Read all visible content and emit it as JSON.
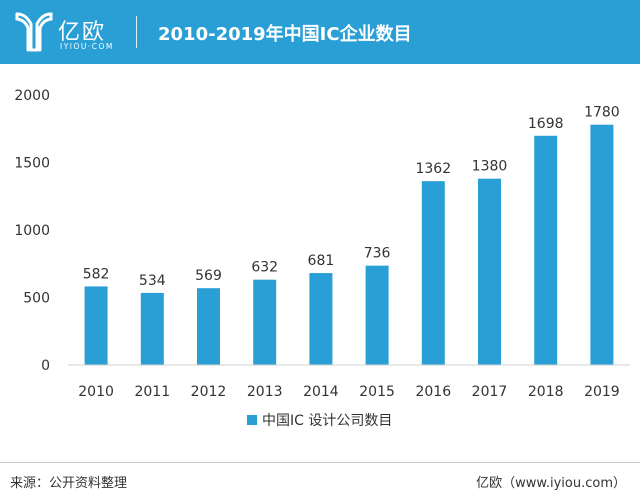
{
  "header": {
    "logo_name": "亿欧",
    "logo_sub": "IYIOU·COM",
    "title": "2010-2019年中国IC企业数目"
  },
  "footer": {
    "source": "来源：公开资料整理",
    "brand": "亿欧（www.iyiou.com）"
  },
  "colors": {
    "header_bg": "#2a9fd6",
    "bar": "#2a9fd6"
  },
  "chart_data": {
    "type": "bar",
    "title": "2010-2019年中国IC企业数目",
    "categories": [
      "2010",
      "2011",
      "2012",
      "2013",
      "2014",
      "2015",
      "2016",
      "2017",
      "2018",
      "2019"
    ],
    "series": [
      {
        "name": "中国IC 设计公司数目",
        "values": [
          582,
          534,
          569,
          632,
          681,
          736,
          1362,
          1380,
          1698,
          1780
        ]
      }
    ],
    "ylim": [
      0,
      2000
    ],
    "yticks": [
      0,
      500,
      1000,
      1500,
      2000
    ],
    "ytick_labels": [
      "0",
      "500",
      "1000",
      "1500",
      "2000"
    ],
    "data_labels": [
      "582",
      "534",
      "569",
      "632",
      "681",
      "736",
      "1362",
      "1380",
      "1698",
      "1780"
    ],
    "grid": false,
    "legend_position": "bottom-center"
  }
}
